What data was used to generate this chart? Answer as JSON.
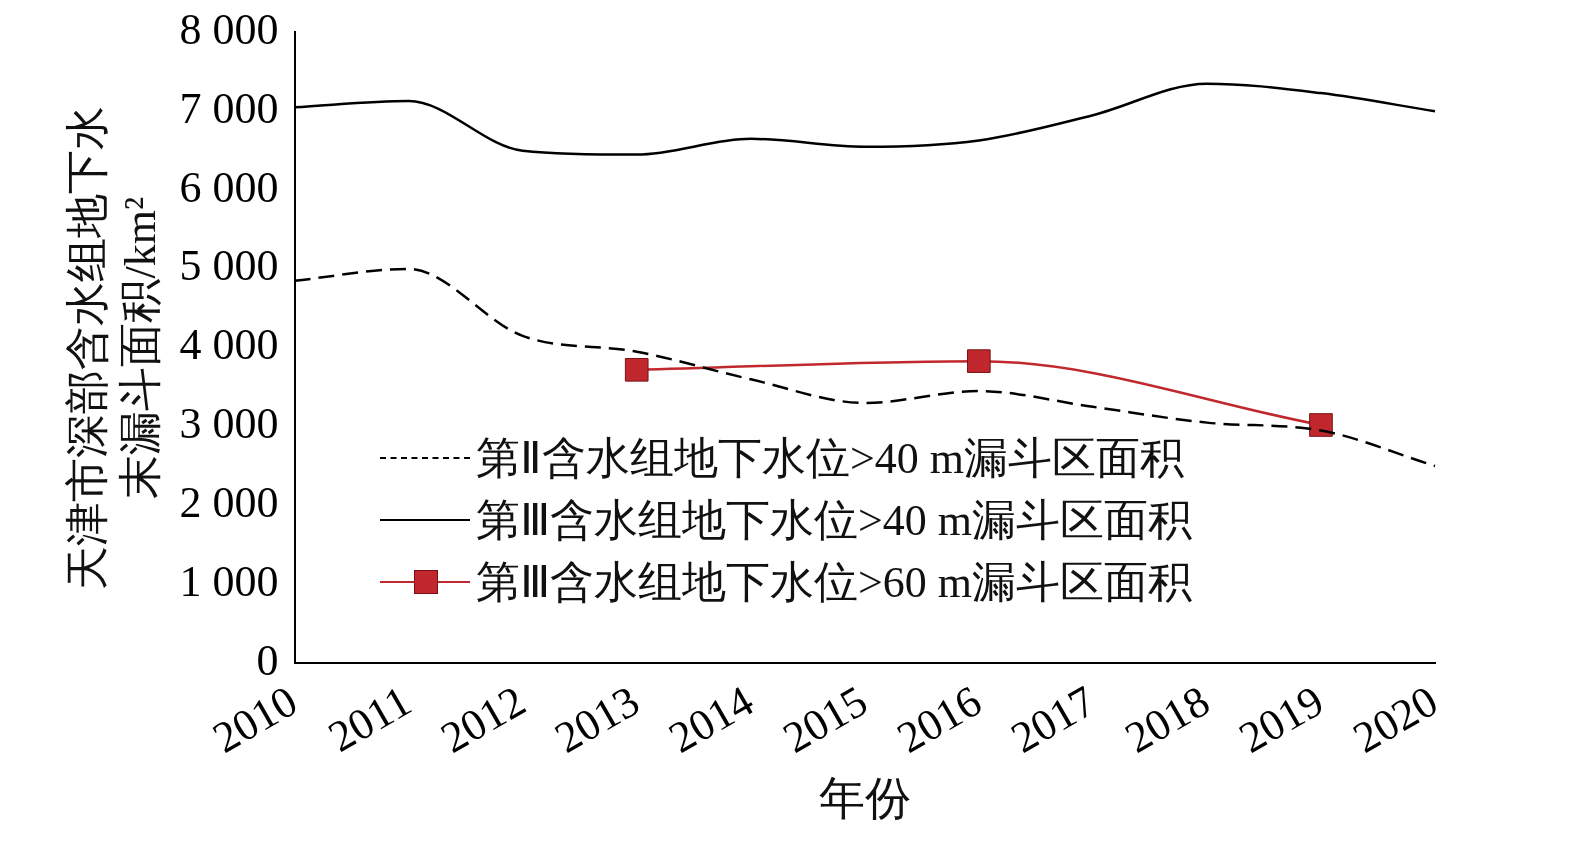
{
  "chart_data": {
    "type": "line",
    "xlabel": "年份",
    "ylabel": "天津市深部含水组地下水末漏斗面积/km²",
    "categories": [
      "2010",
      "2011",
      "2012",
      "2013",
      "2014",
      "2015",
      "2016",
      "2017",
      "2018",
      "2019",
      "2020"
    ],
    "series": [
      {
        "name": "第Ⅱ含水组地下水位>40 m漏斗区面积",
        "color": "#000000",
        "line_style": "dashed",
        "marker": "none",
        "values": [
          4850,
          5000,
          4150,
          3950,
          3600,
          3300,
          3450,
          3250,
          3050,
          2950,
          2500
        ]
      },
      {
        "name": "第Ⅲ含水组地下水位>40 m漏斗区面积",
        "color": "#000000",
        "line_style": "solid",
        "marker": "none",
        "values": [
          7050,
          7130,
          6500,
          6450,
          6650,
          6550,
          6630,
          6950,
          7350,
          7230,
          7000
        ]
      },
      {
        "name": "第Ⅲ含水组地下水位>60 m漏斗区面积",
        "color": "#c0282d",
        "line_style": "solid",
        "marker": "square",
        "values": [
          null,
          null,
          null,
          3720,
          null,
          null,
          3830,
          null,
          null,
          3020,
          null
        ]
      }
    ],
    "ylim": [
      0,
      8000
    ],
    "yticks": [
      {
        "value": 0,
        "label": "0"
      },
      {
        "value": 1000,
        "label": "1 000"
      },
      {
        "value": 2000,
        "label": "2 000"
      },
      {
        "value": 3000,
        "label": "3 000"
      },
      {
        "value": 4000,
        "label": "4 000"
      },
      {
        "value": 5000,
        "label": "5 000"
      },
      {
        "value": 6000,
        "label": "6 000"
      },
      {
        "value": 7000,
        "label": "7 000"
      },
      {
        "value": 8000,
        "label": "8 000"
      }
    ],
    "grid": false,
    "legend": "bottom"
  }
}
